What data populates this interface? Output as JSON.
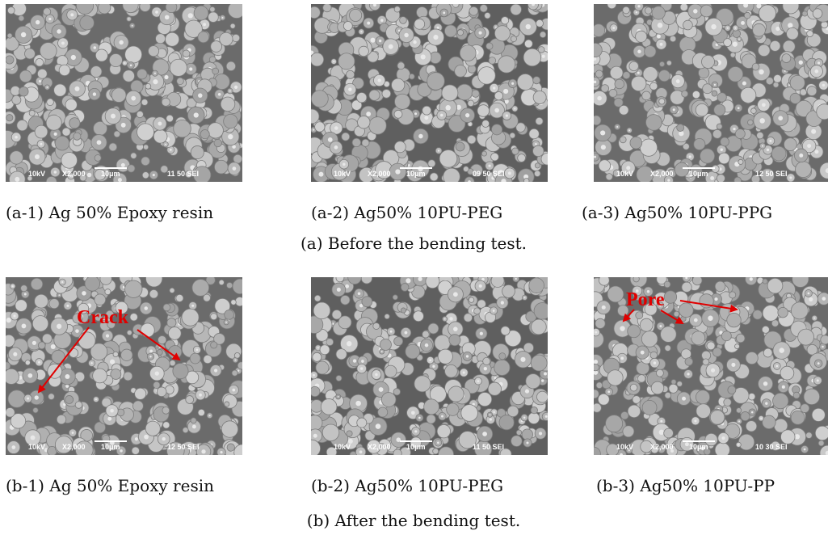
{
  "panels": [
    {
      "caption": "(a-1) Ag 50% Epoxy resin",
      "sem": {
        "voltage": "10kV",
        "magnification": "X2,000",
        "scale": "10μm",
        "code": "11 50 SEI"
      }
    },
    {
      "caption": "(a-2) Ag50% 10PU-PEG",
      "sem": {
        "voltage": "10kV",
        "magnification": "X2,000",
        "scale": "10μm",
        "code": "09 50 SEI"
      }
    },
    {
      "caption": "(a-3) Ag50% 10PU-PPG",
      "sem": {
        "voltage": "10kV",
        "magnification": "X2,000",
        "scale": "10μm",
        "code": "12 50 SEI"
      }
    },
    {
      "caption": "(b-1) Ag 50% Epoxy resin",
      "sem": {
        "voltage": "10kV",
        "magnification": "X2,000",
        "scale": "10μm",
        "code": "12 50 SEI"
      },
      "annotation": "Crack"
    },
    {
      "caption": "(b-2) Ag50% 10PU-PEG",
      "sem": {
        "voltage": "10kV",
        "magnification": "X2,000",
        "scale": "10μm",
        "code": "11 50 SEI"
      }
    },
    {
      "caption": "(b-3) Ag50% 10PU-PP",
      "sem": {
        "voltage": "10kV",
        "magnification": "X2,000",
        "scale": "10μm",
        "code": "10 30 SEI"
      },
      "annotation": "Pore"
    }
  ],
  "group_captions": [
    "(a) Before the bending test.",
    "(b) After the bending test."
  ]
}
